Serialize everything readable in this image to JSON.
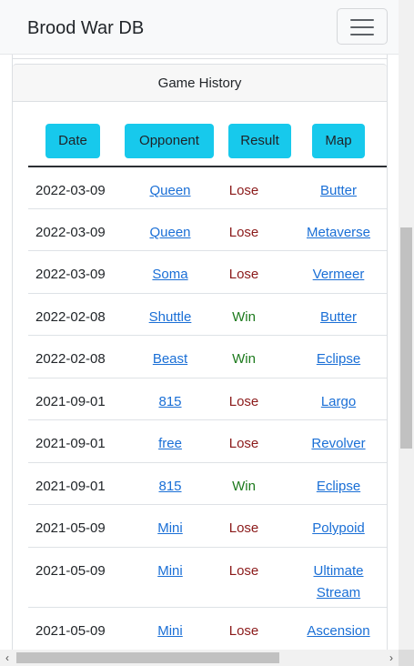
{
  "navbar": {
    "brand": "Brood War DB",
    "menu_icon": "hamburger-menu-icon"
  },
  "card": {
    "header": "Game History"
  },
  "table": {
    "columns": [
      "Date",
      "Opponent",
      "Result",
      "Map"
    ],
    "rows": [
      {
        "date": "2022-03-09",
        "opponent": "Queen",
        "result": "Lose",
        "map": "Butter"
      },
      {
        "date": "2022-03-09",
        "opponent": "Queen",
        "result": "Lose",
        "map": "Metaverse"
      },
      {
        "date": "2022-03-09",
        "opponent": "Soma",
        "result": "Lose",
        "map": "Vermeer"
      },
      {
        "date": "2022-02-08",
        "opponent": "Shuttle",
        "result": "Win",
        "map": "Butter"
      },
      {
        "date": "2022-02-08",
        "opponent": "Beast",
        "result": "Win",
        "map": "Eclipse"
      },
      {
        "date": "2021-09-01",
        "opponent": "815",
        "result": "Lose",
        "map": "Largo"
      },
      {
        "date": "2021-09-01",
        "opponent": "free",
        "result": "Lose",
        "map": "Revolver"
      },
      {
        "date": "2021-09-01",
        "opponent": "815",
        "result": "Win",
        "map": "Eclipse"
      },
      {
        "date": "2021-05-09",
        "opponent": "Mini",
        "result": "Lose",
        "map": "Polypoid"
      },
      {
        "date": "2021-05-09",
        "opponent": "Mini",
        "result": "Lose",
        "map": "Ultimate Stream"
      },
      {
        "date": "2021-05-09",
        "opponent": "Mini",
        "result": "Lose",
        "map": "Ascension"
      }
    ]
  },
  "colors": {
    "win": "#1d7a1d",
    "lose": "#8b1a1a",
    "link": "#1a6fd6",
    "header_button": "#17c9ec"
  },
  "scrollbars": {
    "left_arrow": "‹",
    "right_arrow": "›"
  }
}
